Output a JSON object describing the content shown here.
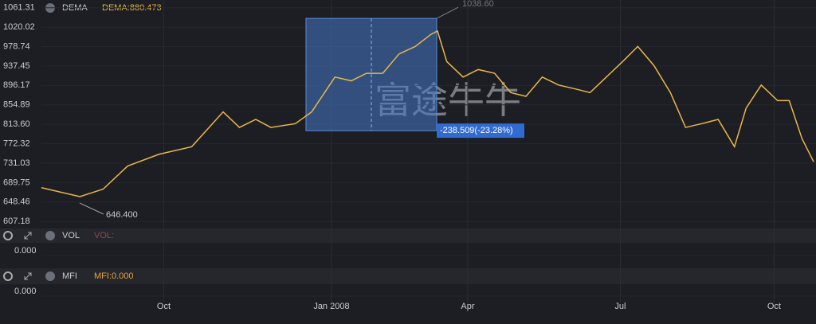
{
  "chart_data": {
    "type": "line",
    "series": [
      {
        "name": "DEMA",
        "color": "#e8b84a",
        "x": [
          0,
          3.3,
          5.3,
          7.4,
          10.1,
          12.9,
          15.6,
          17,
          18.4,
          19.7,
          21.8,
          23.2,
          25.2,
          26.6,
          27.9,
          29.3,
          30.7,
          32.1,
          33.4,
          34,
          34.8,
          36.2,
          37.5,
          38.9,
          40.3,
          41.6,
          43,
          44.4,
          45.8,
          47.1,
          48.5,
          49.9,
          51.2,
          52.6,
          54,
          55.3,
          56.7,
          58.1,
          59.5,
          60.5,
          61.8,
          63.2,
          64.2,
          65.3,
          66.3
        ],
        "values": [
          679,
          660,
          676,
          725,
          750,
          766,
          840,
          807,
          824,
          807,
          815,
          840,
          914,
          906,
          922,
          922,
          963,
          979,
          1004,
          1012,
          947,
          914,
          930,
          922,
          881,
          873,
          914,
          897,
          889,
          881,
          914,
          947,
          979,
          938,
          881,
          807,
          815,
          824,
          766,
          848,
          897,
          864,
          864,
          783,
          734
        ]
      }
    ],
    "legend_value": "DEMA:880.473",
    "xlim": [
      0,
      66.5
    ],
    "xticks": [
      {
        "value": 10.5,
        "label": "Oct"
      },
      {
        "value": 24.9,
        "label": "Jan 2008"
      },
      {
        "value": 36.6,
        "label": "Apr"
      },
      {
        "value": 49.7,
        "label": "Jul"
      },
      {
        "value": 62.9,
        "label": "Oct"
      }
    ],
    "ylim": [
      595.7,
      1077.7
    ],
    "yticks": [
      1061.31,
      1020.02,
      978.74,
      937.45,
      896.17,
      854.89,
      {
        "value": 813.6,
        "label": "813.60"
      },
      772.32,
      731.03,
      689.75,
      648.46,
      607.18
    ],
    "high": {
      "value": 1038.6,
      "label": "1038.60"
    },
    "low": {
      "value": 646.4,
      "label": "646.400"
    },
    "measure": {
      "value": -238.509,
      "label": "-238.509(-23.28%)"
    },
    "watermark": "富途牛牛",
    "grid": true,
    "panels": [
      {
        "name": "VOL",
        "value_label": "VOL:",
        "yticks": [
          {
            "value": 0,
            "label": "0.000"
          }
        ]
      },
      {
        "name": "MFI",
        "value_label": "MFI:0.000",
        "yticks": [
          {
            "value": 0,
            "label": "0.000"
          }
        ]
      }
    ]
  }
}
